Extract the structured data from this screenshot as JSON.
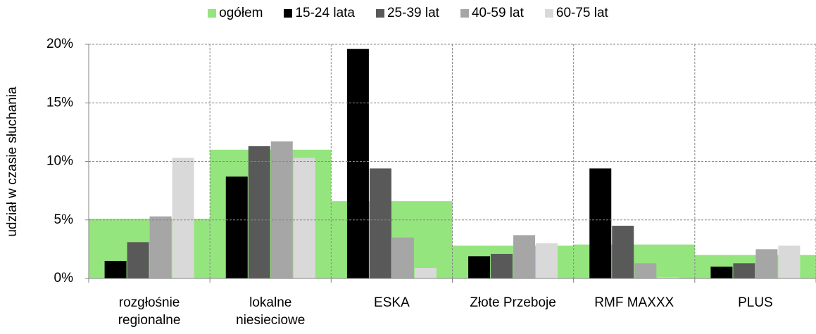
{
  "chart_data": {
    "type": "bar",
    "y_label": "udział w czasie słuchania",
    "categories": [
      "rozgłośnie regionalne",
      "lokalne niesieciowe",
      "ESKA",
      "Złote Przeboje",
      "RMF MAXXX",
      "PLUS"
    ],
    "series": [
      {
        "name": "ogółem",
        "color": "#95e57e",
        "values": [
          5.1,
          11.0,
          6.6,
          2.8,
          2.9,
          2.0
        ]
      },
      {
        "name": "15-24 lata",
        "color": "#000000",
        "values": [
          1.5,
          8.7,
          19.6,
          1.9,
          9.4,
          1.0
        ]
      },
      {
        "name": "25-39 lat",
        "color": "#595959",
        "values": [
          3.1,
          11.3,
          9.4,
          2.1,
          4.5,
          1.3
        ]
      },
      {
        "name": "40-59 lat",
        "color": "#a6a6a6",
        "values": [
          5.3,
          11.7,
          3.5,
          3.7,
          1.3,
          2.5
        ]
      },
      {
        "name": "60-75 lat",
        "color": "#d9d9d9",
        "values": [
          10.3,
          10.3,
          0.9,
          3.0,
          0.1,
          2.8
        ]
      }
    ],
    "ylim": [
      0,
      20
    ],
    "yticks": [
      {
        "value": 0,
        "label": "0%"
      },
      {
        "value": 5,
        "label": "5%"
      },
      {
        "value": 10,
        "label": "10%"
      },
      {
        "value": 15,
        "label": "15%"
      },
      {
        "value": 20,
        "label": "20%"
      }
    ],
    "grid": true
  }
}
